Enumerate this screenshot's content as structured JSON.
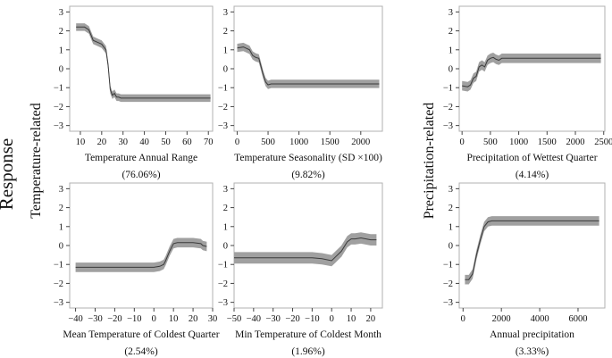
{
  "figure": {
    "response_label": "Response",
    "group_labels": [
      "Temperature-related",
      "Precipitation-related"
    ]
  },
  "colors": {
    "band": "#a0a0a0",
    "line": "#3a3a3a",
    "frame": "#b0b0b0"
  },
  "chart_data": [
    {
      "type": "area",
      "title": "",
      "xlabel": "Temperature Annual Range",
      "contribution": "(76.06%)",
      "xlim": [
        5,
        72
      ],
      "ylim": [
        -3.3,
        3.3
      ],
      "xticks": [
        10,
        20,
        30,
        40,
        50,
        60,
        70
      ],
      "xtick_labels": [
        "10",
        "20",
        "30",
        "40",
        "50",
        "60",
        "70"
      ],
      "yticks": [
        -3,
        -2,
        -1,
        0,
        1,
        2,
        3
      ],
      "series": [
        {
          "name": "response",
          "x": [
            8,
            10,
            12,
            14,
            16,
            18,
            20,
            22,
            23,
            24,
            25,
            26,
            27,
            28,
            29,
            30,
            35,
            50,
            71
          ],
          "y": [
            2.2,
            2.2,
            2.2,
            2.05,
            1.5,
            1.4,
            1.3,
            1.0,
            0.2,
            -1.1,
            -1.4,
            -1.3,
            -1.5,
            -1.5,
            -1.55,
            -1.55,
            -1.55,
            -1.55,
            -1.55
          ],
          "half_width": 0.2
        }
      ]
    },
    {
      "type": "area",
      "title": "",
      "xlabel": "Temperature Seasonality (SD ×100)",
      "contribution": "(9.82%)",
      "xlim": [
        -50,
        2350
      ],
      "ylim": [
        -3.3,
        3.3
      ],
      "xticks": [
        0,
        500,
        1000,
        1500,
        2000
      ],
      "xtick_labels": [
        "0",
        "500",
        "1000",
        "1500",
        "2000"
      ],
      "yticks": [
        -3,
        -2,
        -1,
        0,
        1,
        2,
        3
      ],
      "series": [
        {
          "name": "response",
          "x": [
            0,
            100,
            200,
            250,
            300,
            350,
            380,
            420,
            460,
            500,
            550,
            700,
            1000,
            1500,
            2000,
            2300
          ],
          "y": [
            1.1,
            1.15,
            1.0,
            0.7,
            0.6,
            0.55,
            0.2,
            -0.3,
            -0.7,
            -0.85,
            -0.8,
            -0.8,
            -0.8,
            -0.8,
            -0.8,
            -0.8
          ],
          "half_width": 0.22
        }
      ]
    },
    {
      "type": "area",
      "title": "",
      "xlabel": "Precipitation of Wettest Quarter",
      "contribution": "(4.14%)",
      "xlim": [
        -50,
        2520
      ],
      "ylim": [
        -3.3,
        3.3
      ],
      "xticks": [
        0,
        500,
        1000,
        1500,
        2000,
        2500
      ],
      "xtick_labels": [
        "0",
        "500",
        "1000",
        "1500",
        "2000",
        "2500"
      ],
      "yticks": [
        -3,
        -2,
        -1,
        0,
        1,
        2,
        3
      ],
      "series": [
        {
          "name": "response",
          "x": [
            0,
            100,
            150,
            200,
            250,
            300,
            350,
            400,
            450,
            500,
            550,
            600,
            650,
            700,
            1000,
            1500,
            2000,
            2450
          ],
          "y": [
            -0.9,
            -0.95,
            -0.85,
            -0.5,
            -0.4,
            0.1,
            0.2,
            0.1,
            0.45,
            0.55,
            0.6,
            0.5,
            0.45,
            0.55,
            0.55,
            0.55,
            0.55,
            0.55
          ],
          "half_width": 0.25
        }
      ]
    },
    {
      "type": "area",
      "title": "",
      "xlabel": "Mean Temperature of Coldest Quarter",
      "contribution": "(2.54%)",
      "xlim": [
        -43,
        30
      ],
      "ylim": [
        -3.3,
        3.3
      ],
      "xticks": [
        -40,
        -30,
        -20,
        -10,
        0,
        10,
        20,
        30
      ],
      "xtick_labels": [
        "−40",
        "−30",
        "−20",
        "−10",
        "0",
        "10",
        "20",
        "30"
      ],
      "yticks": [
        -3,
        -2,
        -1,
        0,
        1,
        2,
        3
      ],
      "series": [
        {
          "name": "response",
          "x": [
            -40,
            -30,
            -20,
            -10,
            0,
            3,
            5,
            6,
            8,
            10,
            12,
            15,
            20,
            24,
            25,
            27
          ],
          "y": [
            -1.15,
            -1.15,
            -1.15,
            -1.15,
            -1.15,
            -1.1,
            -1.0,
            -0.8,
            -0.3,
            0.1,
            0.15,
            0.15,
            0.15,
            0.1,
            0.0,
            -0.05
          ],
          "half_width": 0.25
        }
      ]
    },
    {
      "type": "area",
      "title": "",
      "xlabel": "Min Temperature of Coldest Month",
      "contribution": "(1.96%)",
      "xlim": [
        -50,
        26
      ],
      "ylim": [
        -3.3,
        3.3
      ],
      "xticks": [
        -50,
        -40,
        -30,
        -20,
        -10,
        0,
        10,
        20
      ],
      "xtick_labels": [
        "−50",
        "−40",
        "−30",
        "−20",
        "−10",
        "0",
        "10",
        "20"
      ],
      "yticks": [
        -3,
        -2,
        -1,
        0,
        1,
        2,
        3
      ],
      "series": [
        {
          "name": "response",
          "x": [
            -50,
            -40,
            -30,
            -20,
            -10,
            -5,
            0,
            2,
            5,
            8,
            10,
            12,
            15,
            20,
            23
          ],
          "y": [
            -0.65,
            -0.65,
            -0.65,
            -0.65,
            -0.65,
            -0.7,
            -0.8,
            -0.6,
            -0.3,
            0.2,
            0.35,
            0.35,
            0.4,
            0.3,
            0.3
          ],
          "half_width": 0.3
        }
      ]
    },
    {
      "type": "area",
      "title": "",
      "xlabel": "Annual precipitation",
      "contribution": "(3.33%)",
      "xlim": [
        -200,
        7400
      ],
      "ylim": [
        -3.3,
        3.3
      ],
      "xticks": [
        0,
        2000,
        4000,
        6000
      ],
      "xtick_labels": [
        "0",
        "2000",
        "4000",
        "6000"
      ],
      "yticks": [
        -3,
        -2,
        -1,
        0,
        1,
        2,
        3
      ],
      "series": [
        {
          "name": "response",
          "x": [
            100,
            300,
            500,
            700,
            900,
            1100,
            1300,
            1500,
            1800,
            2500,
            4000,
            6000,
            7100
          ],
          "y": [
            -1.8,
            -1.8,
            -1.5,
            -0.5,
            0.3,
            1.0,
            1.25,
            1.3,
            1.3,
            1.3,
            1.3,
            1.3,
            1.3
          ],
          "half_width": 0.25
        }
      ]
    }
  ]
}
